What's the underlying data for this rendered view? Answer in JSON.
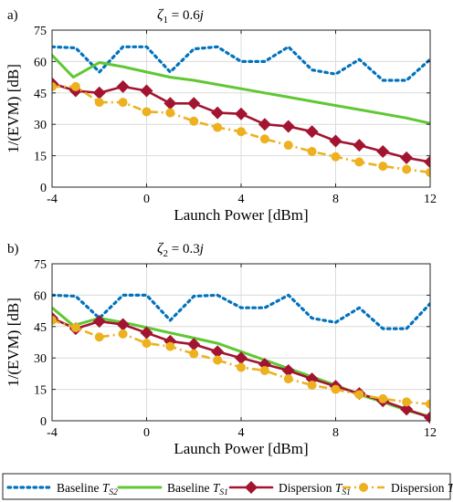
{
  "chart_data": [
    {
      "type": "line",
      "panel_label": "a)",
      "title": {
        "sym": "ζ",
        "sub": "1",
        "eq": " = 0.6",
        "unit": "j"
      },
      "xlabel": "Launch Power [dBm]",
      "ylabel": "1/(EVM) [dB]",
      "xlim": [
        -4,
        12
      ],
      "ylim": [
        0,
        75
      ],
      "xticks": [
        -4,
        0,
        4,
        8,
        12
      ],
      "yticks": [
        0,
        15,
        30,
        45,
        60,
        75
      ],
      "grid": true,
      "series": [
        {
          "key": "baseline_ts2",
          "color": "#0072BD",
          "x": [
            -4,
            -3,
            -2,
            -1,
            0,
            1,
            2,
            3,
            4,
            5,
            6,
            7,
            8,
            9,
            10,
            11,
            12
          ],
          "y": [
            67,
            66.5,
            55,
            67,
            67,
            55,
            66,
            67,
            60,
            60,
            67,
            56,
            54,
            61,
            51,
            51,
            61
          ]
        },
        {
          "key": "baseline_ts1",
          "color": "#5FC832",
          "x": [
            -4,
            -3.1,
            -2,
            -1,
            0,
            1,
            2,
            3,
            4,
            5,
            6,
            7,
            8,
            9,
            10,
            11,
            12
          ],
          "y": [
            63,
            52.5,
            59.5,
            57.5,
            55,
            52.5,
            51,
            49,
            47,
            45,
            43,
            41,
            39,
            37,
            35,
            33,
            30.5
          ]
        },
        {
          "key": "dispersion_ts1",
          "color": "#A2142F",
          "x": [
            -4,
            -3,
            -2,
            -1,
            0,
            1,
            2,
            3,
            4,
            5,
            6,
            7,
            8,
            9,
            10,
            11,
            12
          ],
          "y": [
            49.5,
            46,
            45,
            48,
            46,
            40,
            40,
            35.5,
            35,
            30,
            29,
            26.5,
            22,
            20,
            17,
            14,
            12
          ]
        },
        {
          "key": "dispersion_ts2",
          "color": "#EDB120",
          "x": [
            -4,
            -3,
            -2,
            -1,
            0,
            1,
            2,
            3,
            4,
            5,
            6,
            7,
            8,
            9,
            10,
            11,
            12
          ],
          "y": [
            48,
            48,
            40.5,
            40.5,
            36,
            35.5,
            31.5,
            28.5,
            26.5,
            23,
            20,
            17,
            14.5,
            12,
            10,
            8.5,
            7
          ]
        }
      ]
    },
    {
      "type": "line",
      "panel_label": "b)",
      "title": {
        "sym": "ζ",
        "sub": "2",
        "eq": " = 0.3",
        "unit": "j"
      },
      "xlabel": "Launch Power [dBm]",
      "ylabel": "1/(EVM) [dB]",
      "xlim": [
        -4,
        12
      ],
      "ylim": [
        0,
        75
      ],
      "xticks": [
        -4,
        0,
        4,
        8,
        12
      ],
      "yticks": [
        0,
        15,
        30,
        45,
        60,
        75
      ],
      "grid": true,
      "series": [
        {
          "key": "baseline_ts2",
          "color": "#0072BD",
          "x": [
            -4,
            -3,
            -2,
            -1,
            0,
            1,
            2,
            3,
            4,
            5,
            6,
            7,
            8,
            9,
            10,
            11,
            12
          ],
          "y": [
            60,
            59.5,
            49,
            60,
            60,
            48,
            59.5,
            60,
            54,
            54,
            60,
            49,
            47,
            54,
            44,
            44,
            56
          ]
        },
        {
          "key": "baseline_ts1",
          "color": "#5FC832",
          "x": [
            -4,
            -3.1,
            -2,
            -1,
            0,
            1,
            2,
            3,
            4,
            5,
            6,
            7,
            8,
            9,
            10,
            11,
            12
          ],
          "y": [
            54,
            45.5,
            49,
            47,
            44.5,
            42,
            39.5,
            37,
            33,
            29,
            25,
            21,
            17,
            12.5,
            9,
            5,
            2
          ]
        },
        {
          "key": "dispersion_ts1",
          "color": "#A2142F",
          "x": [
            -4,
            -3,
            -2,
            -1,
            0,
            1,
            2,
            3,
            4,
            5,
            6,
            7,
            8,
            9,
            10,
            11,
            12
          ],
          "y": [
            49,
            44,
            47.5,
            46,
            42,
            38,
            36.5,
            33,
            30,
            27,
            24,
            20,
            16.5,
            13,
            9.5,
            5.5,
            1.5
          ]
        },
        {
          "key": "dispersion_ts2",
          "color": "#EDB120",
          "x": [
            -4,
            -3,
            -2,
            -1,
            0,
            1,
            2,
            3,
            4,
            5,
            6,
            7,
            8,
            9,
            10,
            11,
            12
          ],
          "y": [
            48,
            44.5,
            40,
            41.5,
            37,
            35.5,
            32,
            29,
            25.5,
            24,
            20,
            17,
            15,
            12.5,
            10.5,
            9,
            8
          ]
        }
      ]
    }
  ],
  "legend": {
    "placement": "bottom",
    "entries": [
      {
        "series": "baseline_ts2",
        "label": "Baseline ",
        "sym": "T",
        "sub": "S2",
        "color": "#0072BD",
        "style": "dotted"
      },
      {
        "series": "baseline_ts1",
        "label": "Baseline ",
        "sym": "T",
        "sub": "S1",
        "color": "#5FC832",
        "style": "solid"
      },
      {
        "series": "dispersion_ts1",
        "label": "Dispersion ",
        "sym": "T",
        "sub": "S1",
        "color": "#A2142F",
        "style": "solid-diamond"
      },
      {
        "series": "dispersion_ts2",
        "label": "Dispersion ",
        "sym": "T",
        "sub": "S2",
        "color": "#EDB120",
        "style": "dashdot-circle"
      }
    ]
  }
}
